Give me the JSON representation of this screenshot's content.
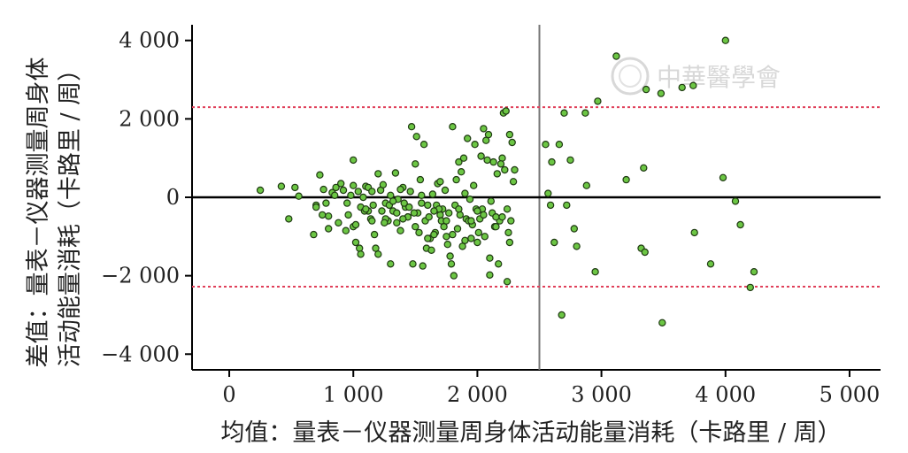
{
  "chart_data": {
    "type": "scatter",
    "title": "",
    "xlabel": "均值：量表－仪器测量周身体活动能量消耗（卡路里 / 周）",
    "ylabel_line1": "差值：量表－仪器测量周身体",
    "ylabel_line2": "活动能量消耗（卡路里 / 周）",
    "xlim": [
      -300,
      5250
    ],
    "ylim": [
      -4400,
      4400
    ],
    "x_ticks": [
      0,
      1000,
      2000,
      3000,
      4000,
      5000
    ],
    "x_tick_labels": [
      "0",
      "1 000",
      "2 000",
      "3 000",
      "4 000",
      "5 000"
    ],
    "y_ticks": [
      4000,
      2000,
      0,
      -2000,
      -4000
    ],
    "y_tick_labels": [
      "4 000",
      "2 000",
      "0",
      "−2 000",
      "−4 000"
    ],
    "reference_lines": {
      "mean_difference": 0,
      "upper_limit": 2300,
      "lower_limit": -2280,
      "vertical_x": 2500
    },
    "grid": false,
    "colors": {
      "point_fill": "#6cc644",
      "point_stroke": "#1f3a12",
      "limit_line": "#e0405a",
      "zero_line": "#000000",
      "vertical_line": "#777777"
    },
    "points": [
      [
        250,
        180
      ],
      [
        420,
        280
      ],
      [
        480,
        -550
      ],
      [
        530,
        250
      ],
      [
        560,
        30
      ],
      [
        680,
        -950
      ],
      [
        700,
        -200
      ],
      [
        730,
        570
      ],
      [
        760,
        200
      ],
      [
        780,
        -150
      ],
      [
        800,
        -480
      ],
      [
        830,
        120
      ],
      [
        860,
        250
      ],
      [
        880,
        -650
      ],
      [
        900,
        350
      ],
      [
        920,
        180
      ],
      [
        940,
        -850
      ],
      [
        960,
        -450
      ],
      [
        980,
        50
      ],
      [
        1000,
        -750
      ],
      [
        1020,
        -1150
      ],
      [
        1040,
        150
      ],
      [
        1060,
        -250
      ],
      [
        1080,
        0
      ],
      [
        1100,
        280
      ],
      [
        1120,
        -350
      ],
      [
        1140,
        -550
      ],
      [
        1160,
        -200
      ],
      [
        1180,
        -1300
      ],
      [
        1200,
        -1450
      ],
      [
        1220,
        180
      ],
      [
        1240,
        320
      ],
      [
        1260,
        -150
      ],
      [
        1280,
        -600
      ],
      [
        1300,
        50
      ],
      [
        1320,
        -350
      ],
      [
        1340,
        620
      ],
      [
        1360,
        -50
      ],
      [
        1380,
        -850
      ],
      [
        1400,
        250
      ],
      [
        1420,
        -250
      ],
      [
        1440,
        -500
      ],
      [
        1460,
        150
      ],
      [
        1480,
        -1700
      ],
      [
        1500,
        -750
      ],
      [
        1520,
        -400
      ],
      [
        1540,
        450
      ],
      [
        1560,
        -1750
      ],
      [
        1580,
        -600
      ],
      [
        1600,
        -200
      ],
      [
        1620,
        -1050
      ],
      [
        1640,
        80
      ],
      [
        1660,
        -900
      ],
      [
        1680,
        350
      ],
      [
        1700,
        -450
      ],
      [
        1720,
        -300
      ],
      [
        1740,
        180
      ],
      [
        1760,
        -1200
      ],
      [
        1780,
        -1500
      ],
      [
        1800,
        1800
      ],
      [
        1820,
        -200
      ],
      [
        1840,
        -800
      ],
      [
        1860,
        -450
      ],
      [
        1880,
        -1250
      ],
      [
        1900,
        100
      ],
      [
        1920,
        1500
      ],
      [
        1940,
        -50
      ],
      [
        1960,
        -700
      ],
      [
        1980,
        1350
      ],
      [
        2000,
        -1150
      ],
      [
        2020,
        -550
      ],
      [
        2040,
        -300
      ],
      [
        2060,
        -1000
      ],
      [
        2080,
        950
      ],
      [
        2100,
        -1980
      ],
      [
        2120,
        -400
      ],
      [
        2140,
        -750
      ],
      [
        2160,
        600
      ],
      [
        2180,
        -600
      ],
      [
        2200,
        1000
      ],
      [
        2220,
        700
      ],
      [
        2240,
        -300
      ],
      [
        2260,
        1600
      ],
      [
        1000,
        950
      ],
      [
        1020,
        -700
      ],
      [
        1050,
        -1300
      ],
      [
        1060,
        -1450
      ],
      [
        1090,
        -350
      ],
      [
        1120,
        250
      ],
      [
        1150,
        -600
      ],
      [
        1170,
        -950
      ],
      [
        1200,
        600
      ],
      [
        1230,
        -350
      ],
      [
        1260,
        -550
      ],
      [
        1290,
        -200
      ],
      [
        1320,
        -100
      ],
      [
        1350,
        -650
      ],
      [
        1380,
        200
      ],
      [
        1410,
        -150
      ],
      [
        1440,
        -500
      ],
      [
        1470,
        1800
      ],
      [
        1490,
        -400
      ],
      [
        1510,
        1550
      ],
      [
        1530,
        -900
      ],
      [
        1550,
        -150
      ],
      [
        1570,
        1350
      ],
      [
        1590,
        -1300
      ],
      [
        1610,
        -500
      ],
      [
        1630,
        -1350
      ],
      [
        1650,
        -950
      ],
      [
        1670,
        -200
      ],
      [
        1690,
        -300
      ],
      [
        1710,
        -600
      ],
      [
        1730,
        -750
      ],
      [
        1750,
        -1000
      ],
      [
        1770,
        -400
      ],
      [
        1790,
        -1700
      ],
      [
        1810,
        -2000
      ],
      [
        1830,
        450
      ],
      [
        1850,
        900
      ],
      [
        1870,
        650
      ],
      [
        1890,
        1000
      ],
      [
        1910,
        -550
      ],
      [
        1930,
        -600
      ],
      [
        1950,
        -1050
      ],
      [
        1970,
        300
      ],
      [
        1990,
        -300
      ],
      [
        2010,
        -900
      ],
      [
        2030,
        1050
      ],
      [
        2050,
        -450
      ],
      [
        2070,
        1450
      ],
      [
        2090,
        1600
      ],
      [
        2110,
        -100
      ],
      [
        2130,
        900
      ],
      [
        2150,
        -500
      ],
      [
        2170,
        -1700
      ],
      [
        2190,
        850
      ],
      [
        2210,
        2150
      ],
      [
        2230,
        2200
      ],
      [
        2240,
        -2150
      ],
      [
        2250,
        -900
      ],
      [
        2260,
        -1150
      ],
      [
        2270,
        -600
      ],
      [
        2280,
        1400
      ],
      [
        2290,
        400
      ],
      [
        2300,
        700
      ],
      [
        700,
        -250
      ],
      [
        750,
        -450
      ],
      [
        800,
        -800
      ],
      [
        850,
        50
      ],
      [
        950,
        -150
      ],
      [
        1000,
        300
      ],
      [
        1100,
        -300
      ],
      [
        1150,
        150
      ],
      [
        1250,
        -650
      ],
      [
        1300,
        -1700
      ],
      [
        1350,
        -400
      ],
      [
        1400,
        -550
      ],
      [
        1450,
        -250
      ],
      [
        1500,
        850
      ],
      [
        1550,
        50
      ],
      [
        1600,
        -1050
      ],
      [
        1650,
        -350
      ],
      [
        1700,
        400
      ],
      [
        1750,
        -600
      ],
      [
        1800,
        -950
      ],
      [
        1850,
        -300
      ],
      [
        1900,
        -1100
      ],
      [
        1950,
        -600
      ],
      [
        2000,
        -350
      ],
      [
        2050,
        1750
      ],
      [
        2100,
        -1550
      ],
      [
        2150,
        -750
      ],
      [
        2200,
        -500
      ],
      [
        2550,
        1350
      ],
      [
        2570,
        100
      ],
      [
        2590,
        -200
      ],
      [
        2600,
        900
      ],
      [
        2620,
        -1150
      ],
      [
        2660,
        1350
      ],
      [
        2680,
        -3000
      ],
      [
        2700,
        2150
      ],
      [
        2720,
        -200
      ],
      [
        2750,
        950
      ],
      [
        2780,
        -800
      ],
      [
        2800,
        -1250
      ],
      [
        2870,
        2150
      ],
      [
        2880,
        300
      ],
      [
        2950,
        -1900
      ],
      [
        2970,
        2450
      ],
      [
        3120,
        3600
      ],
      [
        3200,
        450
      ],
      [
        3320,
        -1300
      ],
      [
        3340,
        750
      ],
      [
        3350,
        -1400
      ],
      [
        3360,
        2750
      ],
      [
        3480,
        2650
      ],
      [
        3490,
        -3200
      ],
      [
        3650,
        2800
      ],
      [
        3740,
        2850
      ],
      [
        3750,
        -900
      ],
      [
        3880,
        -1700
      ],
      [
        3980,
        500
      ],
      [
        4000,
        4000
      ],
      [
        4080,
        -100
      ],
      [
        4120,
        -700
      ],
      [
        4200,
        -2300
      ],
      [
        4230,
        -1900
      ]
    ],
    "watermark": "中華醫學會"
  }
}
